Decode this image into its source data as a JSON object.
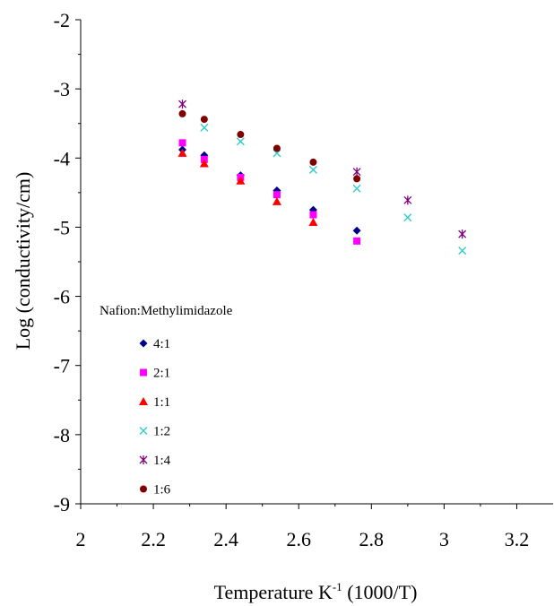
{
  "chart_data": {
    "type": "scatter",
    "title": "",
    "xlabel": "Temperature K",
    "xlabel_sup": "-1",
    "xlabel_suffix": " (1000/T)",
    "ylabel": "Log (conductivity/cm)",
    "xlim": [
      2,
      3.3
    ],
    "ylim": [
      -9,
      -2
    ],
    "xticks": [
      "2",
      "2.2",
      "2.4",
      "2.6",
      "2.8",
      "3",
      "3.2"
    ],
    "yticks": [
      "-2",
      "-3",
      "-4",
      "-5",
      "-6",
      "-7",
      "-8",
      "-9"
    ],
    "grid": false,
    "legend_title": "Nafion:Methylimidazole",
    "legend_position": "bottom-left",
    "series": [
      {
        "name": "4:1",
        "marker": "diamond",
        "color": "#00008B",
        "x": [
          2.28,
          2.34,
          2.44,
          2.54,
          2.64,
          2.76
        ],
        "y": [
          -3.88,
          -3.96,
          -4.25,
          -4.47,
          -4.75,
          -5.05
        ]
      },
      {
        "name": "2:1",
        "marker": "square",
        "color": "#FF00FF",
        "x": [
          2.28,
          2.34,
          2.44,
          2.54,
          2.64,
          2.76
        ],
        "y": [
          -3.78,
          -4.02,
          -4.28,
          -4.53,
          -4.82,
          -5.2
        ]
      },
      {
        "name": "1:1",
        "marker": "triangle",
        "color": "#FF0000",
        "x": [
          2.28,
          2.34,
          2.44,
          2.54,
          2.64
        ],
        "y": [
          -3.93,
          -4.08,
          -4.33,
          -4.63,
          -4.93
        ]
      },
      {
        "name": "1:2",
        "marker": "x",
        "color": "#33CCCC",
        "x": [
          2.34,
          2.44,
          2.54,
          2.64,
          2.76,
          2.9,
          3.05
        ],
        "y": [
          -3.56,
          -3.76,
          -3.93,
          -4.17,
          -4.44,
          -4.86,
          -5.34
        ]
      },
      {
        "name": "1:4",
        "marker": "asterisk",
        "color": "#800080",
        "x": [
          2.28,
          2.76,
          2.9,
          3.05
        ],
        "y": [
          -3.22,
          -4.2,
          -4.61,
          -5.1
        ]
      },
      {
        "name": "1:6",
        "marker": "circle",
        "color": "#800000",
        "x": [
          2.28,
          2.34,
          2.44,
          2.54,
          2.64,
          2.76
        ],
        "y": [
          -3.36,
          -3.44,
          -3.66,
          -3.86,
          -4.06,
          -4.3
        ]
      }
    ]
  }
}
